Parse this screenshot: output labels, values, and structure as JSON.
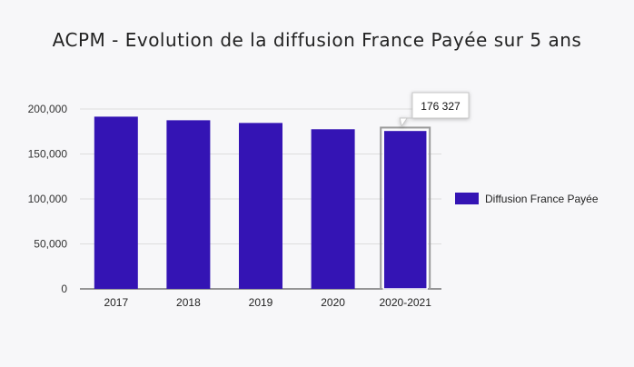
{
  "chart_data": {
    "type": "bar",
    "title": "ACPM - Evolution de la diffusion France Payée sur 5 ans",
    "xlabel": "",
    "ylabel": "",
    "categories": [
      "2017",
      "2018",
      "2019",
      "2020",
      "2020-2021"
    ],
    "series": [
      {
        "name": "Diffusion France Payée",
        "values": [
          191500,
          187500,
          184500,
          177500,
          176327
        ]
      }
    ],
    "ylim": [
      0,
      200000
    ],
    "yticks": [
      "0",
      "50,000",
      "100,000",
      "150,000",
      "200,000"
    ],
    "colors": {
      "bar": "#3414b4",
      "grid": "#dddddd",
      "axis": "#333333"
    },
    "legend_position": "right",
    "tooltip": {
      "category": "2020-2021",
      "label": "176 327"
    }
  }
}
